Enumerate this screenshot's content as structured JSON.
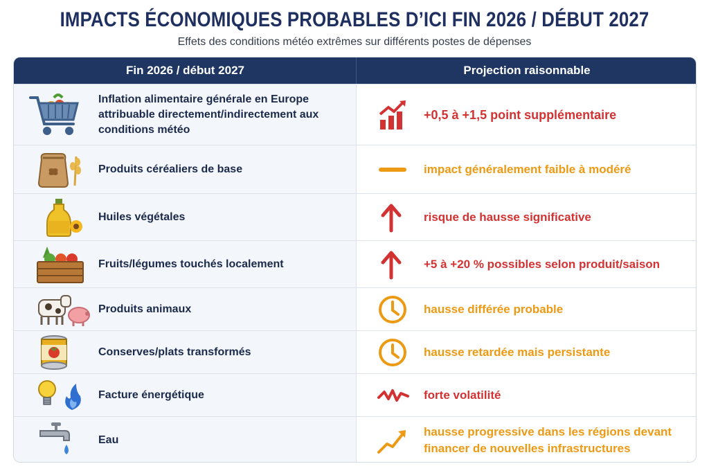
{
  "header": {
    "title": "IMPACTS ÉCONOMIQUES PROBABLES D’ICI FIN 2026 / DÉBUT 2027",
    "subtitle": "Effets des conditions météo extrêmes sur différents postes de dépenses"
  },
  "table": {
    "col_left": "Fin 2026 / début 2027",
    "col_right": "Projection raisonnable",
    "rows": [
      {
        "label": "Inflation alimentaire générale en Europe attribuable directement/indirectement aux conditions météo",
        "icon": "shopping-cart-icon",
        "projection": "+0,5 à +1,5 point supplémentaire",
        "projection_icon": "bar-chart-up-icon",
        "color": "#d23232"
      },
      {
        "label": "Produits céréaliers de base",
        "icon": "grain-sack-icon",
        "projection": "impact généralement faible à modéré",
        "projection_icon": "dash-icon",
        "color": "#ec9a14"
      },
      {
        "label": "Huiles végétales",
        "icon": "oil-bottle-icon",
        "projection": "risque de hausse significative",
        "projection_icon": "arrow-up-icon",
        "color": "#d23232"
      },
      {
        "label": "Fruits/légumes touchés localement",
        "icon": "vegetable-crate-icon",
        "projection": "+5 à +20 % possibles selon produit/saison",
        "projection_icon": "arrow-up-icon",
        "color": "#d23232"
      },
      {
        "label": "Produits animaux",
        "icon": "farm-animals-icon",
        "projection": "hausse différée probable",
        "projection_icon": "clock-icon",
        "color": "#ec9a14"
      },
      {
        "label": "Conserves/plats transformés",
        "icon": "tin-can-icon",
        "projection": "hausse retardée mais persistante",
        "projection_icon": "clock-icon",
        "color": "#ec9a14"
      },
      {
        "label": "Facture énergétique",
        "icon": "bulb-flame-icon",
        "projection": "forte volatilité",
        "projection_icon": "zigzag-icon",
        "color": "#d23232"
      },
      {
        "label": "Eau",
        "icon": "water-tap-icon",
        "projection": "hausse progressive dans les régions devant financer de nouvelles infrastructures",
        "projection_icon": "trend-up-icon",
        "color": "#ec9a14"
      }
    ]
  }
}
